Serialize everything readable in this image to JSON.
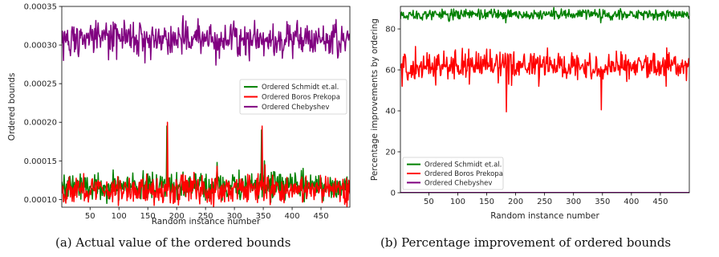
{
  "chart_data": [
    {
      "type": "line",
      "title": "",
      "xlabel": "Random instance number",
      "ylabel": "Ordered bounds",
      "xlim": [
        1,
        500
      ],
      "ylim": [
        9e-05,
        0.00035
      ],
      "x_ticks": [
        50,
        100,
        150,
        200,
        250,
        300,
        350,
        400,
        450
      ],
      "y_ticks": [
        0.0001,
        0.00015,
        0.0002,
        0.00025,
        0.0003,
        0.00035
      ],
      "y_tick_labels": [
        "0.00010",
        "0.00015",
        "0.00020",
        "0.00025",
        "0.00030",
        "0.00035"
      ],
      "legend_position": "center-right",
      "grid": false,
      "series": [
        {
          "name": "Ordered Schmidt et.al.",
          "color": "#008000",
          "base": 0.000117,
          "noise": 9e-06,
          "spikes": [
            [
              183,
              0.000195
            ],
            [
              270,
              0.000148
            ],
            [
              347,
              0.00019
            ],
            [
              352,
              0.00015
            ],
            [
              200,
              0.000135
            ]
          ]
        },
        {
          "name": "Ordered Boros Prekopa",
          "color": "#ff0000",
          "base": 0.000113,
          "noise": 9e-06,
          "spikes": [
            [
              184,
              0.0002
            ],
            [
              348,
              0.000195
            ],
            [
              270,
              0.000143
            ],
            [
              353,
              0.000145
            ],
            [
              230,
              0.000135
            ]
          ]
        },
        {
          "name": "Ordered Chebyshev",
          "color": "#800080",
          "base": 0.000308,
          "noise": 1.1e-05,
          "spikes": [
            [
              211,
              0.000338
            ],
            [
              268,
              0.000274
            ],
            [
              4,
              0.00028
            ]
          ]
        }
      ]
    },
    {
      "type": "line",
      "title": "",
      "xlabel": "Random instance number",
      "ylabel": "Percentage improvements by ordering",
      "xlim": [
        1,
        500
      ],
      "ylim": [
        0,
        91
      ],
      "x_ticks": [
        50,
        100,
        150,
        200,
        250,
        300,
        350,
        400,
        450
      ],
      "y_ticks": [
        0,
        20,
        40,
        60,
        80
      ],
      "y_tick_labels": [
        "0",
        "20",
        "40",
        "60",
        "80"
      ],
      "legend_position": "lower-left",
      "grid": false,
      "series": [
        {
          "name": "Ordered Schmidt et.al.",
          "color": "#008000",
          "base": 87,
          "noise": 1.3,
          "spikes": [
            [
              183,
              83
            ],
            [
              347,
              83
            ]
          ]
        },
        {
          "name": "Ordered Boros Prekopa",
          "color": "#ff0000",
          "base": 62,
          "noise": 3.5,
          "spikes": [
            [
              184,
              39.5
            ],
            [
              348,
              40.5
            ],
            [
              4,
              52
            ],
            [
              120,
              53
            ],
            [
              240,
              52
            ],
            [
              460,
              52
            ]
          ]
        },
        {
          "name": "Ordered Chebyshev",
          "color": "#800080",
          "base": 0,
          "noise": 0,
          "spikes": []
        }
      ]
    }
  ],
  "captions": {
    "a": "(a) Actual value of the ordered bounds",
    "b": "(b) Percentage improvement of ordered bounds"
  }
}
